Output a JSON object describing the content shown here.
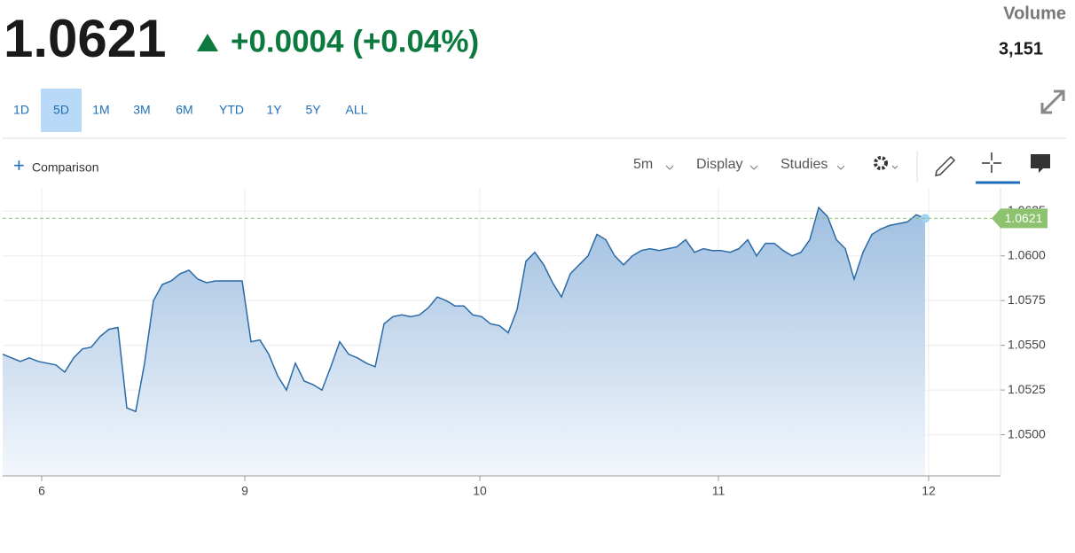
{
  "header": {
    "price": "1.0621",
    "change": "+0.0004 (+0.04%)",
    "volume_label": "Volume",
    "volume": "3,151"
  },
  "ranges": [
    "1D",
    "5D",
    "1M",
    "3M",
    "6M",
    "YTD",
    "1Y",
    "5Y",
    "ALL"
  ],
  "active_range": "5D",
  "toolbar": {
    "comparison": "Comparison",
    "interval": "5m",
    "display": "Display",
    "studies": "Studies"
  },
  "chart_data": {
    "type": "area",
    "x": [
      0,
      1,
      2,
      3,
      4,
      5,
      6,
      7,
      8,
      9,
      10,
      11,
      12,
      13,
      14,
      15,
      16,
      17,
      18,
      19,
      20,
      21,
      22,
      23,
      24,
      25,
      26,
      27,
      28,
      29,
      30,
      31,
      32,
      33,
      34,
      35,
      36,
      37,
      38,
      39,
      40,
      41,
      42,
      43,
      44,
      45,
      46,
      47,
      48,
      49,
      50,
      51,
      52,
      53,
      54,
      55,
      56,
      57,
      58,
      59,
      60,
      61,
      62,
      63,
      64,
      65,
      66,
      67,
      68,
      69,
      70,
      71,
      72,
      73,
      74,
      75,
      76,
      77,
      78,
      79,
      80,
      81,
      82,
      83,
      84,
      85,
      86,
      87,
      88,
      89,
      90,
      91,
      92,
      93,
      94,
      95,
      96,
      97,
      98,
      99,
      100,
      101,
      102,
      103,
      104
    ],
    "series": [
      {
        "color": "#2a6aa6",
        "values": [
          1.0545,
          1.0543,
          1.0541,
          1.0543,
          1.0541,
          1.054,
          1.0539,
          1.0535,
          1.0543,
          1.0548,
          1.0549,
          1.0555,
          1.0559,
          1.056,
          1.0515,
          1.0513,
          1.054,
          1.0575,
          1.0584,
          1.0586,
          1.059,
          1.0592,
          1.0587,
          1.0585,
          1.0586,
          1.0586,
          1.0586,
          1.0586,
          1.0552,
          1.0553,
          1.0545,
          1.0533,
          1.0525,
          1.054,
          1.053,
          1.0528,
          1.0525,
          1.0538,
          1.0552,
          1.0545,
          1.0543,
          1.054,
          1.0538,
          1.0562,
          1.0566,
          1.0567,
          1.0566,
          1.0567,
          1.0571,
          1.0577,
          1.0575,
          1.0572,
          1.0572,
          1.0567,
          1.0566,
          1.0562,
          1.0561,
          1.0557,
          1.057,
          1.0597,
          1.0602,
          1.0595,
          1.0585,
          1.0577,
          1.059,
          1.0595,
          1.06,
          1.0612,
          1.0609,
          1.06,
          1.0595,
          1.06,
          1.0603,
          1.0604,
          1.0603,
          1.0604,
          1.0605,
          1.0609,
          1.0602,
          1.0604,
          1.0603,
          1.0603,
          1.0602,
          1.0604,
          1.0609,
          1.06,
          1.0607,
          1.0607,
          1.0603,
          1.06,
          1.0602,
          1.0609,
          1.0627,
          1.0622,
          1.0609,
          1.0604,
          1.0587,
          1.0602,
          1.0612,
          1.0615,
          1.0617,
          1.0618,
          1.0619,
          1.0623,
          1.0621
        ]
      }
    ],
    "xlim": [
      0,
      112.5
    ],
    "xticks": [
      {
        "value": 4.4,
        "label": "6"
      },
      {
        "value": 27.3,
        "label": "9"
      },
      {
        "value": 53.8,
        "label": "10"
      },
      {
        "value": 80.7,
        "label": "11"
      },
      {
        "value": 104.4,
        "label": "12"
      }
    ],
    "ylim": [
      1.0477,
      1.0638
    ],
    "yticks": [
      {
        "value": 1.05,
        "label": "1.0500"
      },
      {
        "value": 1.0525,
        "label": "1.0525"
      },
      {
        "value": 1.055,
        "label": "1.0550"
      },
      {
        "value": 1.0575,
        "label": "1.0575"
      },
      {
        "value": 1.06,
        "label": "1.0600"
      },
      {
        "value": 1.0625,
        "label": "1.0625"
      }
    ],
    "grid": true,
    "last_price": 1.0621,
    "last_price_color": "#8dc26f"
  }
}
